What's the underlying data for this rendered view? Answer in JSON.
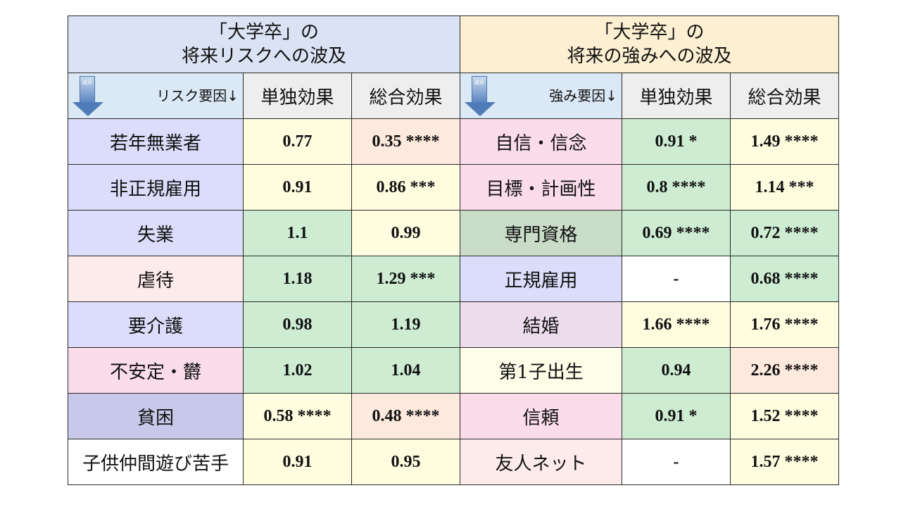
{
  "left_header": {
    "line1": "「大学卒」の",
    "line2": "将来リスクへの波及"
  },
  "right_header": {
    "line1": "「大学卒」の",
    "line2": "将来の強みへの波及"
  },
  "arrow_label": "波及",
  "left_sub": {
    "factor": "リスク要因↓",
    "single": "単独効果",
    "total": "総合効果"
  },
  "right_sub": {
    "factor": "強み要因↓",
    "single": "単独効果",
    "total": "総合効果"
  },
  "colors": {
    "left_header_bg": "#dae3f3",
    "right_header_bg": "#fdefd1",
    "subheader_bg": "#eeeeee",
    "yellow": "#fffde0",
    "green": "#cdecd2",
    "peach": "#fde9dd",
    "white": "#ffffff"
  },
  "rows": [
    {
      "risk": "若年無業者",
      "risk_bg": "#dcdcfb",
      "r_single": "0.77",
      "r_single_bg": "#fffde0",
      "r_total": "0.35 ****",
      "r_total_bg": "#fde9dd",
      "strength": "自信・信念",
      "s_bg": "#fbdcea",
      "s_single": "0.91 *",
      "s_single_bg": "#cdecd2",
      "s_total": "1.49 ****",
      "s_total_bg": "#fffde0"
    },
    {
      "risk": "非正規雇用",
      "risk_bg": "#dcdcfb",
      "r_single": "0.91",
      "r_single_bg": "#fffde0",
      "r_total": "0.86 ***",
      "r_total_bg": "#fffde0",
      "strength": "目標・計画性",
      "s_bg": "#fbdcea",
      "s_single": "0.8 ****",
      "s_single_bg": "#cdecd2",
      "s_total": "1.14 ***",
      "s_total_bg": "#fffde0"
    },
    {
      "risk": "失業",
      "risk_bg": "#dcdcfb",
      "r_single": "1.1",
      "r_single_bg": "#cdecd2",
      "r_total": "0.99",
      "r_total_bg": "#fffde0",
      "strength": "専門資格",
      "s_bg": "#c8dcc8",
      "s_single": "0.69 ****",
      "s_single_bg": "#cdecd2",
      "s_total": "0.72 ****",
      "s_total_bg": "#cdecd2"
    },
    {
      "risk": "虐待",
      "risk_bg": "#fdeaea",
      "r_single": "1.18",
      "r_single_bg": "#cdecd2",
      "r_total": "1.29 ***",
      "r_total_bg": "#cdecd2",
      "strength": "正規雇用",
      "s_bg": "#dcdcfb",
      "s_single": "-",
      "s_single_bg": "#ffffff",
      "s_total": "0.68 ****",
      "s_total_bg": "#cdecd2"
    },
    {
      "risk": "要介護",
      "risk_bg": "#dcdcfb",
      "r_single": "0.98",
      "r_single_bg": "#cdecd2",
      "r_total": "1.19",
      "r_total_bg": "#cdecd2",
      "strength": "結婚",
      "s_bg": "#ecdcec",
      "s_single": "1.66 ****",
      "s_single_bg": "#fffde0",
      "s_total": "1.76 ****",
      "s_total_bg": "#fffde0"
    },
    {
      "risk": "不安定・欝",
      "risk_bg": "#fbdcea",
      "r_single": "1.02",
      "r_single_bg": "#cdecd2",
      "r_total": "1.04",
      "r_total_bg": "#cdecd2",
      "strength": "第1子出生",
      "s_bg": "#fdfde8",
      "s_single": "0.94",
      "s_single_bg": "#cdecd2",
      "s_total": "2.26 ****",
      "s_total_bg": "#fde9dd"
    },
    {
      "risk": "貧困",
      "risk_bg": "#c8c8ea",
      "r_single": "0.58 ****",
      "r_single_bg": "#fffde0",
      "r_total": "0.48 ****",
      "r_total_bg": "#fde9dd",
      "strength": "信頼",
      "s_bg": "#fbdcea",
      "s_single": "0.91 *",
      "s_single_bg": "#cdecd2",
      "s_total": "1.52 ****",
      "s_total_bg": "#fffde0"
    },
    {
      "risk": "子供仲間遊び苦手",
      "risk_bg": "#ffffff",
      "r_single": "0.91",
      "r_single_bg": "#fffde0",
      "r_total": "0.95",
      "r_total_bg": "#fffde0",
      "strength": "友人ネット",
      "s_bg": "#fdeaea",
      "s_single": "-",
      "s_single_bg": "#ffffff",
      "s_total": "1.57 ****",
      "s_total_bg": "#fffde0"
    }
  ]
}
